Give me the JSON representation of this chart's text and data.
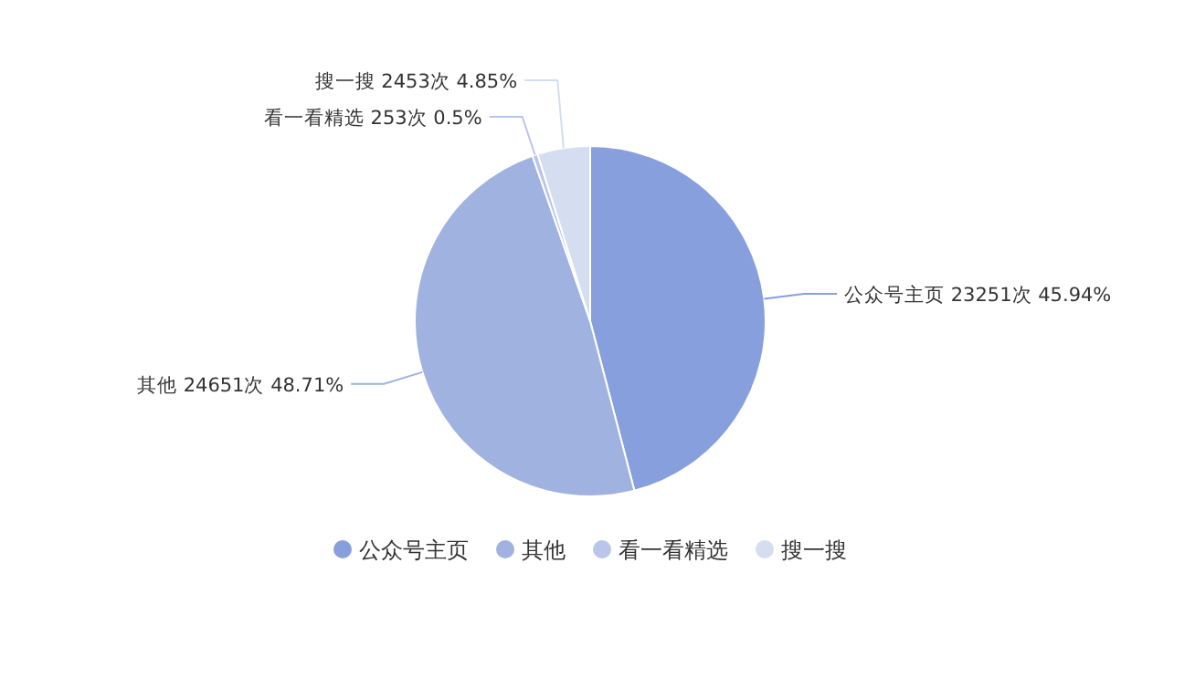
{
  "chart_data": {
    "type": "pie",
    "categories": [
      "公众号主页",
      "其他",
      "看一看精选",
      "搜一搜"
    ],
    "values": [
      23251,
      24651,
      253,
      2453
    ],
    "value_labels": [
      "23251次 45.94%",
      "24651次 48.71%",
      "253次 0.5%",
      "2453次 4.85%"
    ],
    "colors": [
      "#889fde",
      "#9fb2e0",
      "#b9c6ea",
      "#d5ddf0"
    ],
    "legend": "bottom"
  }
}
